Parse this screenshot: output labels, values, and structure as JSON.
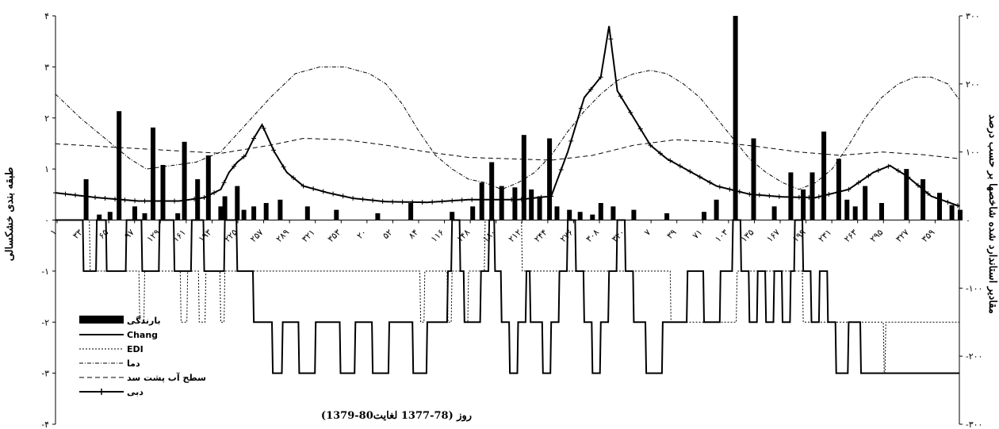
{
  "chart_data": {
    "type": "line",
    "xlabel": "روز (78-1377 لغایت80-1379)",
    "ylabel_left": "طبقه بندی خشکسالی",
    "ylabel_right": "مقادیر استاندارد شده شاخصها بر حسب درصد",
    "ylim_left": [
      -4,
      4
    ],
    "ylim_right": [
      -300,
      300
    ],
    "yticks_left": [
      "۴",
      "۳",
      "۲",
      "۱",
      "۰",
      "-۱",
      "-۲",
      "-۳",
      "-۴"
    ],
    "yticks_right": [
      "۳۰۰",
      "۲۰۰",
      "۱۰۰",
      "۰",
      "-۱۰۰",
      "-۲۰۰",
      "-۳۰۰"
    ],
    "xticks": [
      "۱",
      "۳۳",
      "۶۵",
      "۹۷",
      "۱۲۹",
      "۱۶۱",
      "۱۹۳",
      "۲۲۵",
      "۲۵۷",
      "۲۸۹",
      "۳۲۱",
      "۳۵۳",
      "۲۰",
      "۵۲",
      "۸۴",
      "۱۱۶",
      "۱۴۸",
      "۱۸۰",
      "۲۱۲",
      "۲۴۴",
      "۲۷۶",
      "۳۰۸",
      "۳۴۰",
      "۷",
      "۳۹",
      "۷۱",
      "۱۰۳",
      "۱۳۵",
      "۱۶۷",
      "۱۹۹",
      "۲۳۱",
      "۲۶۳",
      "۲۹۵",
      "۳۲۷",
      "۳۵۹"
    ],
    "days": 1095,
    "legend": [
      {
        "label": "بارندگی",
        "style": "bar"
      },
      {
        "label": "Chang",
        "style": "solid"
      },
      {
        "label": "EDI",
        "style": "dotted"
      },
      {
        "label": "دما",
        "style": "dashdot"
      },
      {
        "label": "سطح آب پشت سد",
        "style": "dashed"
      },
      {
        "label": "دبی",
        "style": "star"
      }
    ],
    "series": [
      {
        "key": "rain",
        "axis": "right",
        "values_by_day": [
          [
            37,
            60
          ],
          [
            53,
            8
          ],
          [
            66,
            12
          ],
          [
            77,
            160
          ],
          [
            96,
            20
          ],
          [
            108,
            10
          ],
          [
            118,
            136
          ],
          [
            130,
            81
          ],
          [
            148,
            10
          ],
          [
            156,
            115
          ],
          [
            172,
            60
          ],
          [
            185,
            95
          ],
          [
            200,
            20
          ],
          [
            205,
            35
          ],
          [
            220,
            50
          ],
          [
            228,
            15
          ],
          [
            240,
            20
          ],
          [
            255,
            25
          ],
          [
            272,
            30
          ],
          [
            305,
            20
          ],
          [
            340,
            15
          ],
          [
            390,
            10
          ],
          [
            430,
            25
          ],
          [
            480,
            12
          ],
          [
            505,
            20
          ],
          [
            516,
            55
          ],
          [
            528,
            85
          ],
          [
            540,
            50
          ],
          [
            556,
            48
          ],
          [
            567,
            125
          ],
          [
            576,
            45
          ],
          [
            586,
            35
          ],
          [
            598,
            120
          ],
          [
            607,
            20
          ],
          [
            622,
            15
          ],
          [
            635,
            12
          ],
          [
            650,
            8
          ],
          [
            660,
            25
          ],
          [
            675,
            20
          ],
          [
            700,
            15
          ],
          [
            740,
            10
          ],
          [
            785,
            12
          ],
          [
            800,
            30
          ],
          [
            823,
            300
          ],
          [
            845,
            120
          ],
          [
            870,
            20
          ],
          [
            890,
            70
          ],
          [
            905,
            45
          ],
          [
            916,
            70
          ],
          [
            930,
            130
          ],
          [
            948,
            90
          ],
          [
            958,
            30
          ],
          [
            968,
            20
          ],
          [
            980,
            50
          ],
          [
            1000,
            25
          ],
          [
            1030,
            75
          ],
          [
            1050,
            60
          ],
          [
            1070,
            40
          ],
          [
            1085,
            22
          ],
          [
            1095,
            15
          ]
        ]
      },
      {
        "key": "chang",
        "axis": "left",
        "values_by_day": [
          [
            0,
            0
          ],
          [
            30,
            0
          ],
          [
            34,
            -1
          ],
          [
            45,
            -1
          ],
          [
            50,
            0
          ],
          [
            58,
            0
          ],
          [
            62,
            -1
          ],
          [
            83,
            -1
          ],
          [
            86,
            0
          ],
          [
            100,
            0
          ],
          [
            105,
            -1
          ],
          [
            122,
            -1
          ],
          [
            126,
            0
          ],
          [
            140,
            0
          ],
          [
            144,
            -1
          ],
          [
            160,
            -1
          ],
          [
            165,
            0
          ],
          [
            175,
            0
          ],
          [
            180,
            -1
          ],
          [
            200,
            -1
          ],
          [
            205,
            0
          ],
          [
            215,
            0
          ],
          [
            220,
            -1
          ],
          [
            235,
            -1
          ],
          [
            240,
            -2
          ],
          [
            260,
            -2
          ],
          [
            263,
            -3
          ],
          [
            270,
            -3
          ],
          [
            275,
            -2
          ],
          [
            290,
            -2
          ],
          [
            295,
            -3
          ],
          [
            310,
            -3
          ],
          [
            315,
            -2
          ],
          [
            340,
            -2
          ],
          [
            345,
            -3
          ],
          [
            360,
            -3
          ],
          [
            363,
            -2
          ],
          [
            380,
            -2
          ],
          [
            384,
            -3
          ],
          [
            400,
            -3
          ],
          [
            404,
            -2
          ],
          [
            430,
            -2
          ],
          [
            433,
            -3
          ],
          [
            445,
            -3
          ],
          [
            450,
            -2
          ],
          [
            470,
            -2
          ],
          [
            475,
            -1
          ],
          [
            480,
            0
          ],
          [
            490,
            -1
          ],
          [
            495,
            -2
          ],
          [
            510,
            -2
          ],
          [
            515,
            -1
          ],
          [
            525,
            0
          ],
          [
            532,
            -1
          ],
          [
            540,
            -2
          ],
          [
            550,
            -3
          ],
          [
            560,
            -2
          ],
          [
            570,
            -1
          ],
          [
            575,
            -2
          ],
          [
            590,
            -3
          ],
          [
            600,
            -2
          ],
          [
            610,
            -1
          ],
          [
            620,
            0
          ],
          [
            630,
            -1
          ],
          [
            640,
            -2
          ],
          [
            650,
            -3
          ],
          [
            660,
            -2
          ],
          [
            670,
            -1
          ],
          [
            680,
            0
          ],
          [
            690,
            -1
          ],
          [
            700,
            -2
          ],
          [
            715,
            -3
          ],
          [
            730,
            -3
          ],
          [
            735,
            -2
          ],
          [
            760,
            -2
          ],
          [
            765,
            -1
          ],
          [
            780,
            -1
          ],
          [
            785,
            -2
          ],
          [
            800,
            -2
          ],
          [
            805,
            -1
          ],
          [
            815,
            -1
          ],
          [
            820,
            0
          ],
          [
            830,
            -1
          ],
          [
            840,
            -2
          ],
          [
            850,
            -1
          ],
          [
            860,
            -2
          ],
          [
            870,
            -1
          ],
          [
            880,
            -2
          ],
          [
            890,
            -1
          ],
          [
            895,
            0
          ],
          [
            905,
            -1
          ],
          [
            915,
            -2
          ],
          [
            925,
            -1
          ],
          [
            935,
            -2
          ],
          [
            945,
            -3
          ],
          [
            960,
            -2
          ],
          [
            975,
            -3
          ],
          [
            1095,
            -3
          ]
        ]
      },
      {
        "key": "edi",
        "axis": "left",
        "values_by_day": [
          [
            0,
            0
          ],
          [
            40,
            0
          ],
          [
            42,
            -1
          ],
          [
            100,
            -1
          ],
          [
            102,
            -2
          ],
          [
            108,
            -1
          ],
          [
            150,
            -1
          ],
          [
            152,
            -2
          ],
          [
            160,
            -1
          ],
          [
            172,
            -1
          ],
          [
            174,
            -2
          ],
          [
            182,
            -1
          ],
          [
            196,
            -1
          ],
          [
            200,
            -2
          ],
          [
            205,
            -1
          ],
          [
            440,
            -1
          ],
          [
            442,
            -2
          ],
          [
            447,
            -1
          ],
          [
            470,
            -1
          ],
          [
            475,
            -2
          ],
          [
            480,
            -1
          ],
          [
            490,
            -1
          ],
          [
            495,
            -2
          ],
          [
            500,
            -1
          ],
          [
            515,
            -1
          ],
          [
            520,
            0
          ],
          [
            560,
            0
          ],
          [
            565,
            -1
          ],
          [
            740,
            -1
          ],
          [
            745,
            -2
          ],
          [
            820,
            -2
          ],
          [
            825,
            -1
          ],
          [
            900,
            -1
          ],
          [
            905,
            -2
          ],
          [
            1000,
            -2
          ],
          [
            1003,
            -3
          ],
          [
            1005,
            -2
          ],
          [
            1095,
            -2
          ]
        ]
      },
      {
        "key": "temp",
        "axis": "right",
        "values_by_day": [
          [
            0,
            185
          ],
          [
            30,
            150
          ],
          [
            60,
            120
          ],
          [
            90,
            90
          ],
          [
            110,
            75
          ],
          [
            140,
            80
          ],
          [
            170,
            85
          ],
          [
            200,
            100
          ],
          [
            230,
            140
          ],
          [
            260,
            180
          ],
          [
            290,
            215
          ],
          [
            320,
            225
          ],
          [
            350,
            225
          ],
          [
            380,
            215
          ],
          [
            400,
            200
          ],
          [
            420,
            170
          ],
          [
            440,
            130
          ],
          [
            460,
            95
          ],
          [
            480,
            75
          ],
          [
            500,
            60
          ],
          [
            520,
            55
          ],
          [
            540,
            45
          ],
          [
            560,
            55
          ],
          [
            580,
            70
          ],
          [
            600,
            95
          ],
          [
            620,
            130
          ],
          [
            640,
            160
          ],
          [
            660,
            185
          ],
          [
            680,
            205
          ],
          [
            700,
            215
          ],
          [
            720,
            220
          ],
          [
            740,
            215
          ],
          [
            760,
            200
          ],
          [
            780,
            180
          ],
          [
            800,
            150
          ],
          [
            820,
            120
          ],
          [
            840,
            90
          ],
          [
            860,
            70
          ],
          [
            880,
            55
          ],
          [
            900,
            45
          ],
          [
            920,
            55
          ],
          [
            940,
            75
          ],
          [
            960,
            110
          ],
          [
            980,
            150
          ],
          [
            1000,
            180
          ],
          [
            1020,
            200
          ],
          [
            1040,
            210
          ],
          [
            1060,
            210
          ],
          [
            1080,
            200
          ],
          [
            1095,
            175
          ]
        ]
      },
      {
        "key": "level",
        "axis": "right",
        "values_by_day": [
          [
            0,
            112
          ],
          [
            100,
            105
          ],
          [
            200,
            98
          ],
          [
            260,
            110
          ],
          [
            300,
            120
          ],
          [
            350,
            118
          ],
          [
            400,
            110
          ],
          [
            450,
            100
          ],
          [
            500,
            92
          ],
          [
            550,
            90
          ],
          [
            600,
            88
          ],
          [
            650,
            95
          ],
          [
            700,
            110
          ],
          [
            750,
            118
          ],
          [
            800,
            115
          ],
          [
            850,
            108
          ],
          [
            900,
            100
          ],
          [
            950,
            95
          ],
          [
            1000,
            100
          ],
          [
            1050,
            96
          ],
          [
            1095,
            90
          ]
        ]
      },
      {
        "key": "flow",
        "axis": "right",
        "values_by_day": [
          [
            0,
            40
          ],
          [
            50,
            33
          ],
          [
            100,
            28
          ],
          [
            150,
            28
          ],
          [
            180,
            33
          ],
          [
            200,
            45
          ],
          [
            210,
            70
          ],
          [
            220,
            85
          ],
          [
            230,
            95
          ],
          [
            240,
            120
          ],
          [
            250,
            140
          ],
          [
            265,
            100
          ],
          [
            280,
            70
          ],
          [
            300,
            50
          ],
          [
            330,
            40
          ],
          [
            360,
            32
          ],
          [
            400,
            27
          ],
          [
            450,
            26
          ],
          [
            500,
            30
          ],
          [
            560,
            30
          ],
          [
            600,
            35
          ],
          [
            620,
            100
          ],
          [
            640,
            180
          ],
          [
            660,
            210
          ],
          [
            670,
            285
          ],
          [
            680,
            190
          ],
          [
            700,
            150
          ],
          [
            720,
            110
          ],
          [
            740,
            90
          ],
          [
            770,
            70
          ],
          [
            800,
            50
          ],
          [
            840,
            38
          ],
          [
            880,
            34
          ],
          [
            920,
            33
          ],
          [
            960,
            45
          ],
          [
            990,
            70
          ],
          [
            1010,
            80
          ],
          [
            1030,
            65
          ],
          [
            1060,
            35
          ],
          [
            1095,
            20
          ]
        ]
      }
    ]
  }
}
